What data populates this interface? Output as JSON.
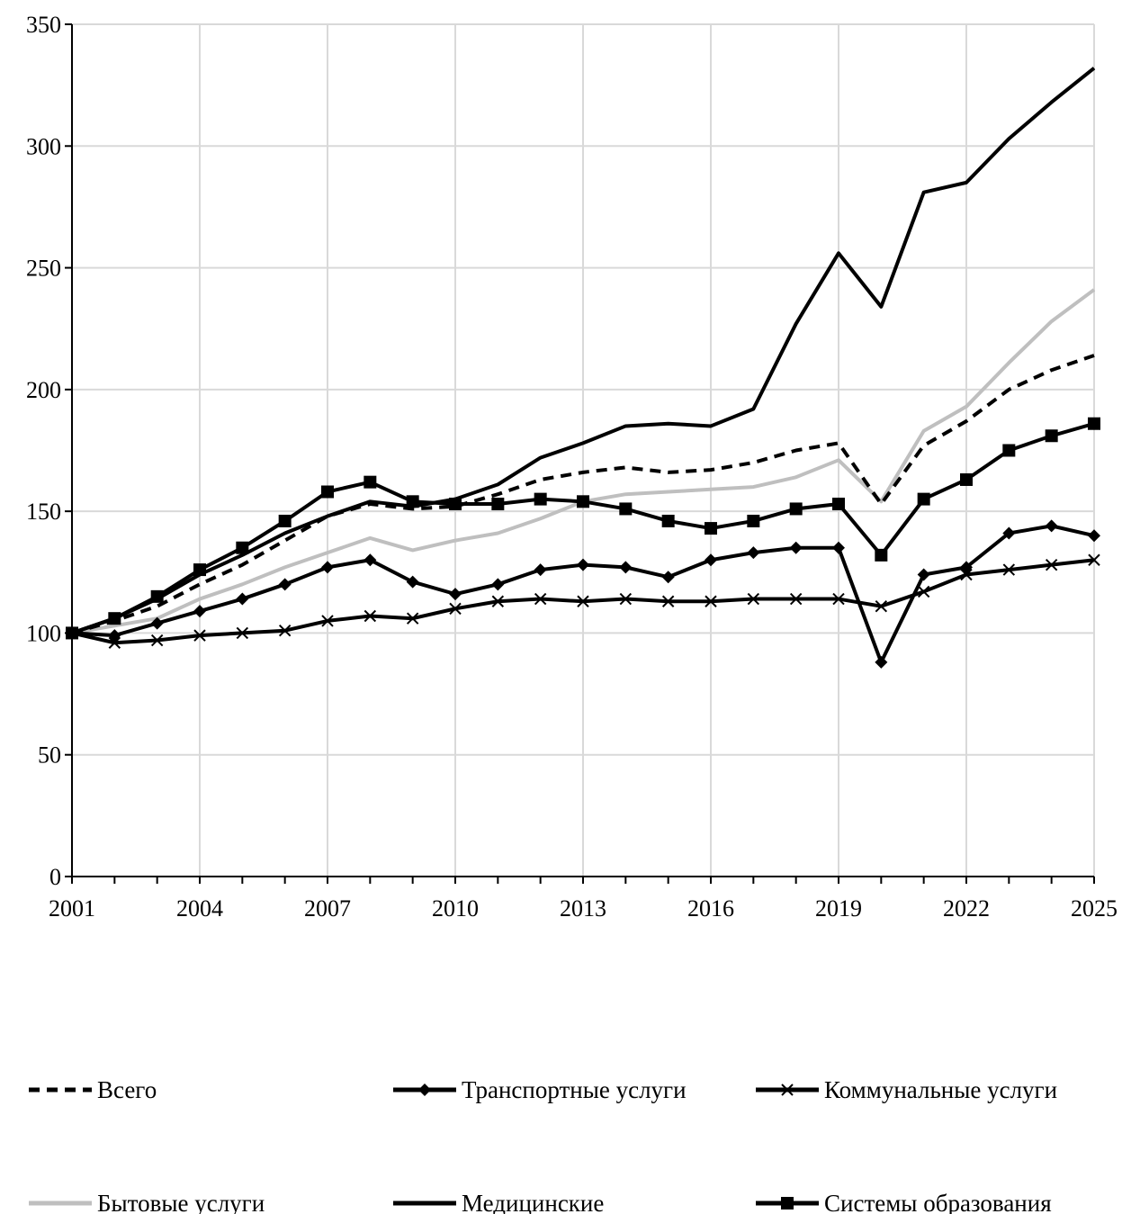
{
  "chart_data": {
    "type": "line",
    "title": "",
    "xlabel": "",
    "ylabel": "",
    "x": [
      2001,
      2002,
      2003,
      2004,
      2005,
      2006,
      2007,
      2008,
      2009,
      2010,
      2011,
      2012,
      2013,
      2014,
      2015,
      2016,
      2017,
      2018,
      2019,
      2020,
      2021,
      2022,
      2023,
      2024,
      2025
    ],
    "xticks": [
      2001,
      2004,
      2007,
      2010,
      2013,
      2016,
      2019,
      2022,
      2025
    ],
    "yticks": [
      0,
      50,
      100,
      150,
      200,
      250,
      300,
      350
    ],
    "xlim": [
      2001,
      2025
    ],
    "ylim": [
      0,
      350
    ],
    "grid": "vertical and horizontal",
    "legend_position": "bottom",
    "series": [
      {
        "name": "Всего",
        "color": "#000000",
        "style": "dashed",
        "marker": "none",
        "values": [
          100,
          105,
          111,
          120,
          128,
          138,
          148,
          153,
          151,
          152,
          157,
          163,
          166,
          168,
          166,
          167,
          170,
          175,
          178,
          153,
          177,
          187,
          200,
          208,
          214
        ]
      },
      {
        "name": "Транспортные услуги",
        "color": "#000000",
        "style": "solid",
        "marker": "diamond",
        "values": [
          100,
          99,
          104,
          109,
          114,
          120,
          127,
          130,
          121,
          116,
          120,
          126,
          128,
          127,
          123,
          130,
          133,
          135,
          135,
          88,
          124,
          127,
          141,
          144,
          140
        ]
      },
      {
        "name": "Коммунальные услуги",
        "color": "#000000",
        "style": "solid",
        "marker": "x",
        "values": [
          100,
          96,
          97,
          99,
          100,
          101,
          105,
          107,
          106,
          110,
          113,
          114,
          113,
          114,
          113,
          113,
          114,
          114,
          114,
          111,
          117,
          124,
          126,
          128,
          130
        ]
      },
      {
        "name": "Бытовые услуги",
        "color": "#bfbfbf",
        "style": "solid",
        "marker": "none",
        "values": [
          100,
          103,
          106,
          114,
          120,
          127,
          133,
          139,
          134,
          138,
          141,
          147,
          154,
          157,
          158,
          159,
          160,
          164,
          171,
          154,
          183,
          193,
          211,
          228,
          241
        ]
      },
      {
        "name": "Медицинские",
        "color": "#000000",
        "style": "solid",
        "marker": "none",
        "values": [
          100,
          106,
          114,
          124,
          132,
          141,
          148,
          154,
          152,
          155,
          161,
          172,
          178,
          185,
          186,
          185,
          192,
          227,
          256,
          234,
          281,
          285,
          303,
          318,
          332
        ]
      },
      {
        "name": "Системы образования",
        "color": "#000000",
        "style": "solid",
        "marker": "square",
        "values": [
          100,
          106,
          115,
          126,
          135,
          146,
          158,
          162,
          154,
          153,
          153,
          155,
          154,
          151,
          146,
          143,
          146,
          151,
          153,
          132,
          155,
          163,
          175,
          181,
          186
        ]
      }
    ]
  }
}
